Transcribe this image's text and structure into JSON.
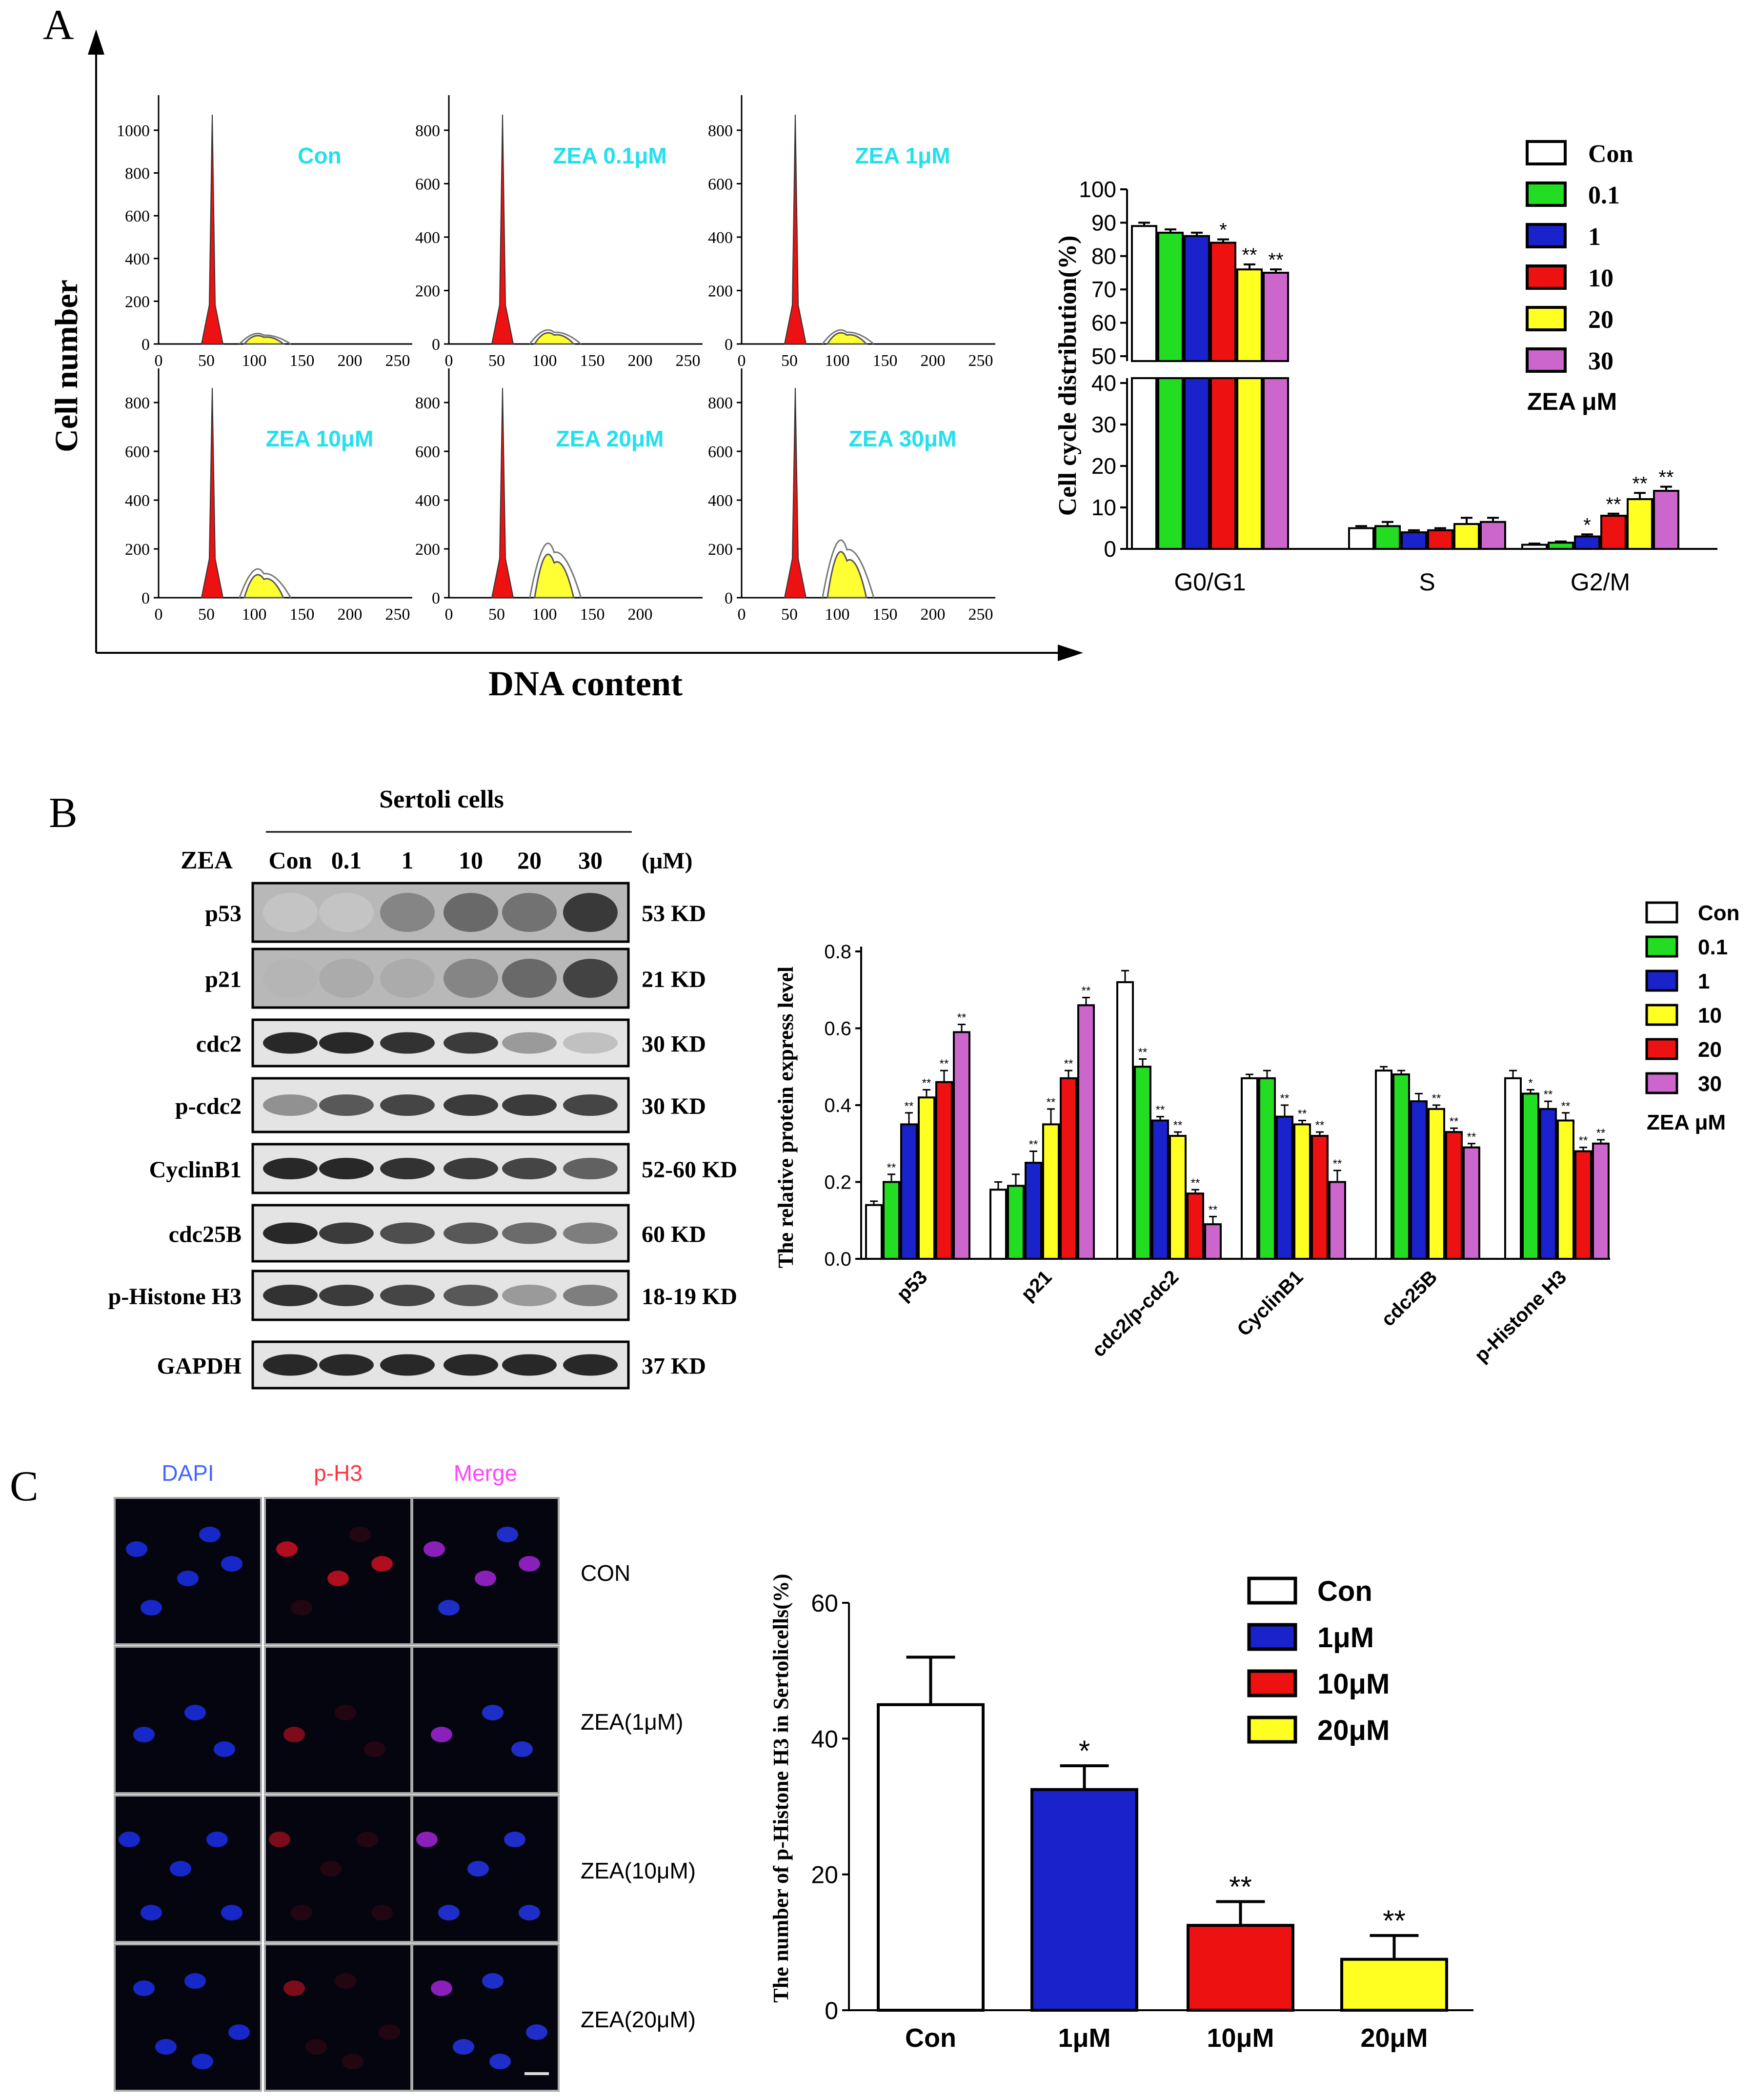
{
  "panel_letters": [
    "A",
    "B",
    "C"
  ],
  "colors": {
    "con": "#ffffff",
    "c01": "#22dd22",
    "c1": "#1a22cc",
    "c10": "#ee1111",
    "c20": "#ffff22",
    "c30": "#cc66cc",
    "peak": "#ee1111",
    "sub": "#ffff33",
    "histlabel": "#22e0ee",
    "legend_c": [
      "#ffffff",
      "#1a22cc",
      "#ee1111",
      "#ffff22"
    ]
  },
  "panelA": {
    "ylabel": "Cell number",
    "xlabel": "DNA content",
    "histograms": [
      {
        "label": "Con",
        "yticks": [
          "1000",
          "800",
          "600",
          "400",
          "200",
          "0"
        ],
        "xticks": [
          "0",
          "50",
          "100",
          "150",
          "200",
          "250"
        ],
        "peak2": 0.03
      },
      {
        "label": "ZEA 0.1μM",
        "yticks": [
          "800",
          "600",
          "400",
          "200",
          "0"
        ],
        "xticks": [
          "0",
          "50",
          "100",
          "150",
          "200",
          "250"
        ],
        "peak2": 0.04
      },
      {
        "label": "ZEA 1μM",
        "yticks": [
          "800",
          "600",
          "400",
          "200",
          "0"
        ],
        "xticks": [
          "0",
          "50",
          "100",
          "150",
          "200",
          "250"
        ],
        "peak2": 0.04
      },
      {
        "label": "ZEA 10μM",
        "yticks": [
          "800",
          "600",
          "400",
          "200",
          "0"
        ],
        "xticks": [
          "0",
          "50",
          "100",
          "150",
          "200",
          "250"
        ],
        "peak2": 0.09
      },
      {
        "label": "ZEA 20μM",
        "yticks": [
          "800",
          "600",
          "400",
          "200",
          "0"
        ],
        "xticks": [
          "0",
          "50",
          "100",
          "150",
          "200"
        ],
        "peak2": 0.17
      },
      {
        "label": "ZEA 30μM",
        "yticks": [
          "800",
          "600",
          "400",
          "200",
          "0"
        ],
        "xticks": [
          "0",
          "50",
          "100",
          "150",
          "200",
          "250"
        ],
        "peak2": 0.18
      }
    ]
  },
  "chart_data": [
    {
      "type": "bar",
      "title": "",
      "ylabel": "Cell cycle distribution(%)",
      "xlabel": "",
      "categories": [
        "G0/G1",
        "S",
        "G2/M"
      ],
      "ylim_lower": [
        0,
        40
      ],
      "ylim_upper": [
        50,
        100
      ],
      "yticks_lower": [
        "0",
        "10",
        "20",
        "30",
        "40"
      ],
      "yticks_upper": [
        "50",
        "60",
        "70",
        "80",
        "90",
        "100"
      ],
      "legend_title": "ZEA μM",
      "series": [
        {
          "name": "Con",
          "values": [
            89,
            5,
            1
          ],
          "errors": [
            1,
            0.5,
            0.3
          ],
          "sig": [
            "",
            "",
            ""
          ]
        },
        {
          "name": "0.1",
          "values": [
            87,
            5.5,
            1.5
          ],
          "errors": [
            1,
            1,
            0.3
          ],
          "sig": [
            "",
            "",
            ""
          ]
        },
        {
          "name": "1",
          "values": [
            86,
            4,
            3
          ],
          "errors": [
            1,
            0.5,
            0.5
          ],
          "sig": [
            "",
            "",
            "*"
          ]
        },
        {
          "name": "10",
          "values": [
            84,
            4.5,
            8
          ],
          "errors": [
            1,
            0.5,
            0.5
          ],
          "sig": [
            "*",
            "",
            "**"
          ]
        },
        {
          "name": "20",
          "values": [
            76,
            6,
            12
          ],
          "errors": [
            1.5,
            1.5,
            1.5
          ],
          "sig": [
            "**",
            "",
            "**"
          ]
        },
        {
          "name": "30",
          "values": [
            75,
            6.5,
            14
          ],
          "errors": [
            1,
            1,
            1
          ],
          "sig": [
            "**",
            "",
            "**"
          ]
        }
      ]
    },
    {
      "type": "bar",
      "title": "",
      "ylabel": "The relative protein express level",
      "xlabel": "",
      "categories": [
        "p53",
        "p21",
        "cdc2/p-cdc2",
        "CyclinB1",
        "cdc25B",
        "p-Histone H3"
      ],
      "ylim": [
        0,
        0.8
      ],
      "yticks": [
        "0.0",
        "0.2",
        "0.4",
        "0.6",
        "0.8"
      ],
      "legend_title": "ZEA μM",
      "series": [
        {
          "name": "Con",
          "values": [
            0.14,
            0.18,
            0.72,
            0.47,
            0.49,
            0.47
          ],
          "errors": [
            0.01,
            0.02,
            0.03,
            0.01,
            0.01,
            0.02
          ],
          "sig": [
            "",
            "",
            "",
            "",
            "",
            ""
          ]
        },
        {
          "name": "0.1",
          "values": [
            0.2,
            0.19,
            0.5,
            0.47,
            0.48,
            0.43
          ],
          "errors": [
            0.02,
            0.03,
            0.02,
            0.02,
            0.01,
            0.01
          ],
          "sig": [
            "**",
            "",
            "**",
            "",
            "",
            "*"
          ]
        },
        {
          "name": "1",
          "values": [
            0.35,
            0.25,
            0.36,
            0.37,
            0.41,
            0.39
          ],
          "errors": [
            0.03,
            0.03,
            0.01,
            0.03,
            0.02,
            0.02
          ],
          "sig": [
            "**",
            "**",
            "**",
            "**",
            "",
            "**"
          ]
        },
        {
          "name": "10",
          "values": [
            0.42,
            0.35,
            0.32,
            0.35,
            0.39,
            0.36
          ],
          "errors": [
            0.02,
            0.04,
            0.01,
            0.01,
            0.01,
            0.02
          ],
          "sig": [
            "**",
            "**",
            "**",
            "**",
            "**",
            "**"
          ]
        },
        {
          "name": "20",
          "values": [
            0.46,
            0.47,
            0.17,
            0.32,
            0.33,
            0.28
          ],
          "errors": [
            0.03,
            0.02,
            0.01,
            0.01,
            0.01,
            0.01
          ],
          "sig": [
            "**",
            "**",
            "**",
            "**",
            "**",
            "**"
          ]
        },
        {
          "name": "30",
          "values": [
            0.59,
            0.66,
            0.09,
            0.2,
            0.29,
            0.3
          ],
          "errors": [
            0.02,
            0.02,
            0.02,
            0.03,
            0.01,
            0.01
          ],
          "sig": [
            "**",
            "**",
            "**",
            "**",
            "**",
            "**"
          ]
        }
      ]
    },
    {
      "type": "bar",
      "title": "",
      "ylabel": "The number of p-Histone H3 in Sertolicells(%)",
      "xlabel": "",
      "categories": [
        "Con",
        "1μM",
        "10μM",
        "20μM"
      ],
      "values": [
        45,
        32.5,
        12.5,
        7.5
      ],
      "errors": [
        7,
        3.5,
        3.5,
        3.5
      ],
      "sig": [
        "",
        "*",
        "**",
        "**"
      ],
      "ylim": [
        0,
        60
      ],
      "yticks": [
        "0",
        "20",
        "40",
        "60"
      ],
      "legend": [
        "Con",
        "1μM",
        "10μM",
        "20μM"
      ]
    }
  ],
  "panelB": {
    "header": "Sertoli cells",
    "zea_label": "ZEA",
    "unit": "(μM)",
    "lanes": [
      "Con",
      "0.1",
      "1",
      "10",
      "20",
      "30"
    ],
    "blots": [
      {
        "name": "p53",
        "kd": "53 KD",
        "intensity": [
          0.12,
          0.12,
          0.45,
          0.6,
          0.55,
          0.85
        ],
        "dark": true
      },
      {
        "name": "p21",
        "kd": "21 KD",
        "intensity": [
          0.2,
          0.25,
          0.25,
          0.45,
          0.6,
          0.8
        ],
        "dark": true
      },
      {
        "name": "cdc2",
        "kd": "30 KD",
        "intensity": [
          0.95,
          0.95,
          0.9,
          0.85,
          0.35,
          0.15
        ],
        "dark": false
      },
      {
        "name": "p-cdc2",
        "kd": "30 KD",
        "intensity": [
          0.4,
          0.7,
          0.8,
          0.85,
          0.85,
          0.8
        ],
        "dark": false
      },
      {
        "name": "CyclinB1",
        "kd": "52-60 KD",
        "intensity": [
          0.95,
          0.95,
          0.9,
          0.85,
          0.8,
          0.65
        ],
        "dark": false
      },
      {
        "name": "cdc25B",
        "kd": "60 KD",
        "intensity": [
          0.95,
          0.85,
          0.75,
          0.7,
          0.6,
          0.5
        ],
        "dark": false
      },
      {
        "name": "p-Histone H3",
        "kd": "18-19 KD",
        "intensity": [
          0.9,
          0.85,
          0.8,
          0.7,
          0.35,
          0.5
        ],
        "dark": false
      },
      {
        "name": "GAPDH",
        "kd": "37 KD",
        "intensity": [
          0.95,
          0.95,
          0.95,
          0.95,
          0.95,
          0.95
        ],
        "dark": false
      }
    ]
  },
  "panelC": {
    "channels": [
      "DAPI",
      "p-H3",
      "Merge"
    ],
    "channel_colors": [
      "#4466ff",
      "#ff3344",
      "#ff44ff"
    ],
    "rows": [
      "CON",
      "ZEA(1μM)",
      "ZEA(10μM)",
      "ZEA(20μM)"
    ]
  }
}
